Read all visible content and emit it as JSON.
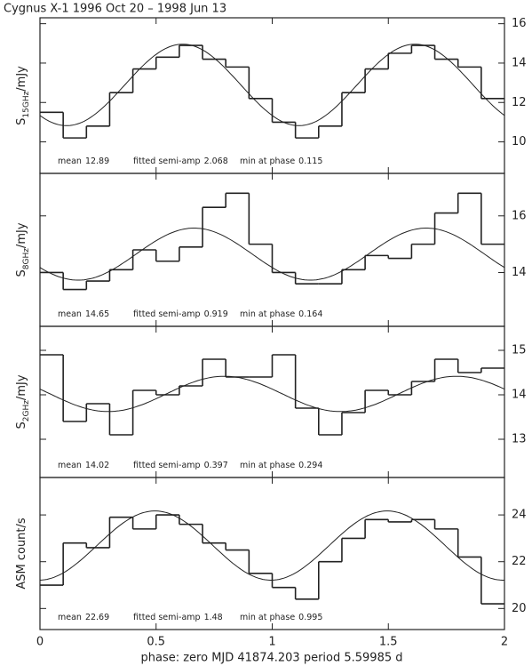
{
  "chart_data": [
    {
      "type": "histogram",
      "title": "Cygnus X-1  1996 Oct 20 – 1998 Jun 13",
      "ylabel": {
        "main": "S",
        "sub": "15GHz",
        "unit": "/mJy"
      },
      "bins": [
        0,
        0.1,
        0.2,
        0.3,
        0.4,
        0.5,
        0.6,
        0.7,
        0.8,
        0.9,
        1.0,
        1.1,
        1.2,
        1.3,
        1.4,
        1.5,
        1.6,
        1.7,
        1.8,
        1.9,
        2.0
      ],
      "values": [
        11.5,
        10.2,
        10.8,
        12.5,
        13.7,
        14.3,
        14.9,
        14.2,
        13.8,
        12.2,
        11.0,
        10.2,
        10.8,
        12.5,
        13.7,
        14.5,
        14.9,
        14.2,
        13.8,
        12.2
      ],
      "ylim": [
        8.4,
        16.3
      ],
      "yticks": [
        10,
        12,
        14,
        16
      ],
      "fit": [
        {
          "label": "mean",
          "value": 12.89
        },
        {
          "label": "fitted semi-amp",
          "value": 2.068
        },
        {
          "label": "min at phase",
          "value": 0.115
        }
      ]
    },
    {
      "type": "histogram",
      "ylabel": {
        "main": "S",
        "sub": "8GHz",
        "unit": "/mJy"
      },
      "bins": [
        0,
        0.1,
        0.2,
        0.3,
        0.4,
        0.5,
        0.6,
        0.7,
        0.8,
        0.9,
        1.0,
        1.1,
        1.2,
        1.3,
        1.4,
        1.5,
        1.6,
        1.7,
        1.8,
        1.9,
        2.0
      ],
      "values": [
        14.0,
        13.4,
        13.7,
        14.1,
        14.8,
        14.4,
        14.9,
        16.3,
        16.8,
        15.0,
        14.0,
        13.6,
        13.6,
        14.1,
        14.6,
        14.5,
        15.0,
        16.1,
        16.8,
        15.0
      ],
      "ylim": [
        12.1,
        17.5
      ],
      "yticks": [
        14,
        16
      ],
      "fit": [
        {
          "label": "mean",
          "value": 14.65
        },
        {
          "label": "fitted semi-amp",
          "value": 0.919
        },
        {
          "label": "min at phase",
          "value": 0.164
        }
      ]
    },
    {
      "type": "histogram",
      "ylabel": {
        "main": "S",
        "sub": "2GHz",
        "unit": "/mJy"
      },
      "bins": [
        0,
        0.1,
        0.2,
        0.3,
        0.4,
        0.5,
        0.6,
        0.7,
        0.8,
        0.9,
        1.0,
        1.1,
        1.2,
        1.3,
        1.4,
        1.5,
        1.6,
        1.7,
        1.8,
        1.9,
        2.0
      ],
      "values": [
        14.9,
        13.4,
        13.8,
        13.1,
        14.1,
        14.0,
        14.2,
        14.8,
        14.4,
        14.4,
        14.9,
        13.7,
        13.1,
        13.6,
        14.1,
        14.0,
        14.3,
        14.8,
        14.5,
        14.6
      ],
      "ylim": [
        12.14,
        15.54
      ],
      "yticks": [
        13,
        14,
        15
      ],
      "fit": [
        {
          "label": "mean",
          "value": 14.02
        },
        {
          "label": "fitted semi-amp",
          "value": 0.397
        },
        {
          "label": "min at phase",
          "value": 0.294
        }
      ]
    },
    {
      "type": "histogram",
      "ylabel": {
        "main": "ASM count/s"
      },
      "bins": [
        0,
        0.1,
        0.2,
        0.3,
        0.4,
        0.5,
        0.6,
        0.7,
        0.8,
        0.9,
        1.0,
        1.1,
        1.2,
        1.3,
        1.4,
        1.5,
        1.6,
        1.7,
        1.8,
        1.9,
        2.0
      ],
      "values": [
        21.0,
        22.8,
        22.6,
        23.9,
        23.4,
        24.0,
        23.6,
        22.8,
        22.5,
        21.5,
        20.9,
        20.4,
        22.0,
        23.0,
        23.8,
        23.7,
        23.8,
        23.4,
        22.2,
        20.2
      ],
      "ylim": [
        19.1,
        25.6
      ],
      "yticks": [
        20,
        22,
        24
      ],
      "fit": [
        {
          "label": "mean",
          "value": 22.69
        },
        {
          "label": "fitted semi-amp",
          "value": 1.48
        },
        {
          "label": "min at phase",
          "value": 0.995
        }
      ],
      "xlim": [
        0,
        2
      ],
      "xticks": [
        0,
        0.5,
        1,
        1.5,
        2
      ],
      "xlabel": "phase: zero  MJD 41874.203  period 5.59985 d"
    }
  ]
}
